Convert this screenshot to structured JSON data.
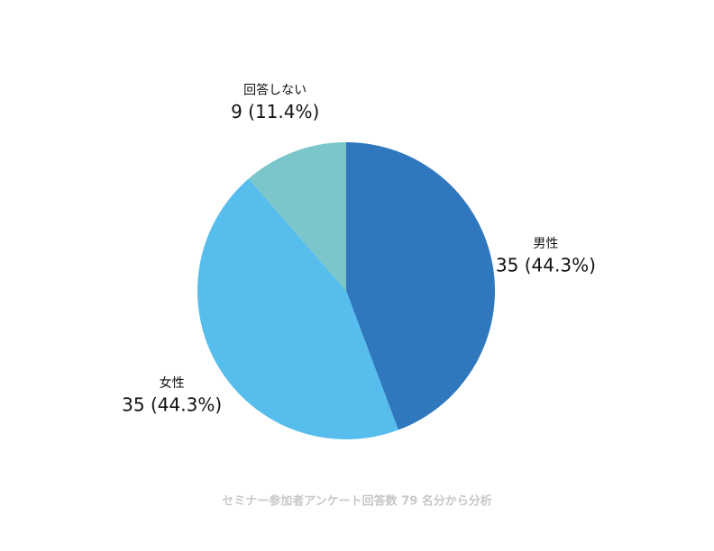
{
  "chart_data": {
    "type": "pie",
    "categories": [
      "男性",
      "女性",
      "回答しない"
    ],
    "values": [
      35,
      35,
      9
    ],
    "value_labels": [
      "35 (44.3%)",
      "35 (44.3%)",
      "9 (11.4%)"
    ],
    "colors": [
      "#2f78be",
      "#56bdec",
      "#7ac6cb"
    ],
    "caption": "セミナー参加者アンケート回答数 79 名分から分析"
  }
}
